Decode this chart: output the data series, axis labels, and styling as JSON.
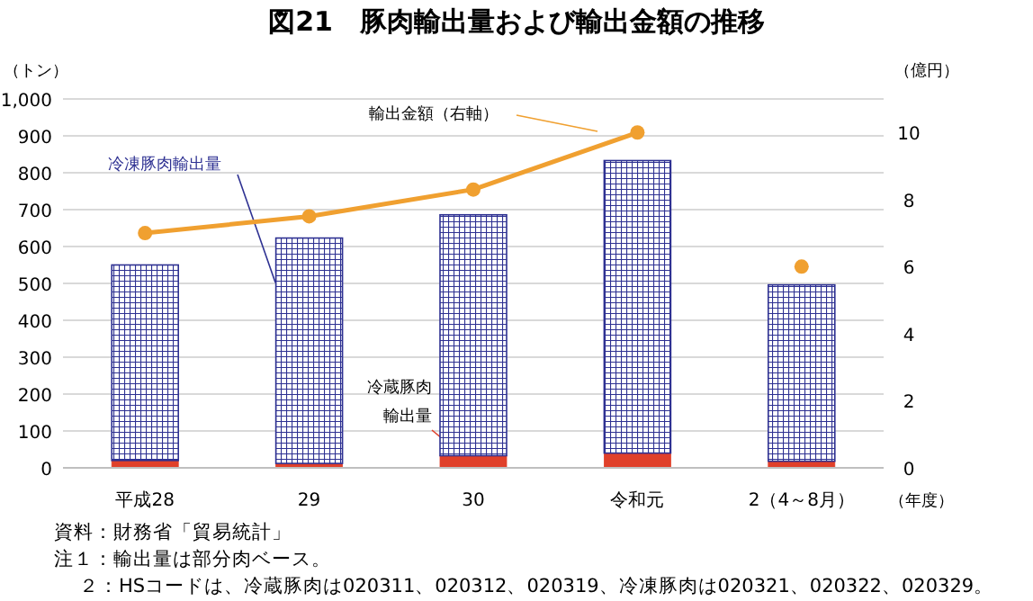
{
  "chart_data": {
    "type": "bar",
    "title": "図21　豚肉輸出量および輸出金額の推移",
    "ylabel": "（トン）",
    "y2label": "（億円）",
    "xlabel": "（年度）",
    "categories": [
      "平成28",
      "29",
      "30",
      "令和元",
      "2（4～8月）"
    ],
    "stacked": true,
    "grid": "y",
    "marker": "circle",
    "ylim": [
      0,
      1000
    ],
    "yticks": [
      0,
      100,
      200,
      300,
      400,
      500,
      600,
      700,
      800,
      900,
      {
        "value": 1000,
        "label": "1,000"
      }
    ],
    "y2lim": [
      0,
      11
    ],
    "y2ticks": [
      0,
      2,
      4,
      6,
      8,
      10
    ],
    "series": [
      {
        "name": "冷蔵豚肉輸出量",
        "color": "#e0402a",
        "values": [
          20,
          12,
          33,
          40,
          18
        ]
      },
      {
        "name": "冷凍豚肉輸出量",
        "color": "#2e3192",
        "values": [
          530,
          611,
          653,
          793,
          478
        ]
      },
      {
        "name": "輸出金額（右軸）",
        "type": "line",
        "axis": "y2",
        "color": "#f0a030",
        "values": [
          7.0,
          7.5,
          8.3,
          10.0,
          null
        ]
      },
      {
        "type": "scatter",
        "axis": "y2",
        "color": "#f0a030",
        "values": [
          null,
          null,
          null,
          null,
          6.0
        ]
      }
    ],
    "annotations": [
      "資料：財務省「貿易統計」",
      "注１：輸出量は部分肉ベース。",
      "２：HSコードは、冷蔵豚肉は020311、020312、020319、冷凍豚肉は020321、020322、020329。"
    ]
  }
}
